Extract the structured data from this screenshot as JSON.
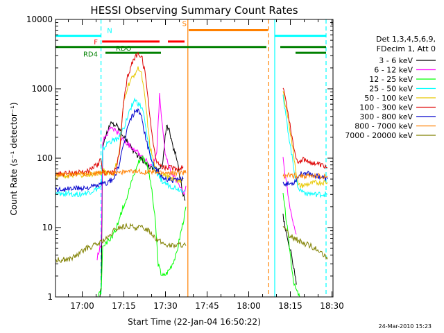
{
  "chart_data": {
    "type": "line",
    "title": "HESSI Observing Summary Count Rates",
    "xlabel": "Start Time (22-Jan-04 16:50:22)",
    "ylabel": "Count Rate (s⁻¹ detector⁻¹)",
    "yscale": "log",
    "xlim": [
      0,
      100
    ],
    "ylim": [
      1,
      10000
    ],
    "x_units": "minutes after 16:50:22",
    "x_ticks": [
      {
        "x": 9.63,
        "label": "17:00"
      },
      {
        "x": 24.63,
        "label": "17:15"
      },
      {
        "x": 39.63,
        "label": "17:30"
      },
      {
        "x": 54.63,
        "label": "17:45"
      },
      {
        "x": 69.63,
        "label": "18:00"
      },
      {
        "x": 84.63,
        "label": "18:15"
      },
      {
        "x": 99.63,
        "label": "18:30"
      }
    ],
    "y_ticks": [
      {
        "y": 1,
        "label": "1"
      },
      {
        "y": 10,
        "label": "10"
      },
      {
        "y": 100,
        "label": "100"
      },
      {
        "y": 1000,
        "label": "1000"
      },
      {
        "y": 10000,
        "label": "10000"
      }
    ],
    "legend_header": [
      "Det 1,3,4,5,6,9,",
      "FDecim 1, Att 0"
    ],
    "legend_position": "right",
    "series": [
      {
        "name": "3 - 6 keV",
        "color": "#000000",
        "points": [
          [
            16.0,
            1
          ],
          [
            16.5,
            1.5
          ],
          [
            17.0,
            150
          ],
          [
            18.5,
            230
          ],
          [
            20.0,
            320
          ],
          [
            22.0,
            300
          ],
          [
            24.0,
            230
          ],
          [
            26.0,
            170
          ],
          [
            28.0,
            130
          ],
          [
            30.0,
            105
          ],
          [
            32.0,
            90
          ],
          [
            34.0,
            75
          ],
          [
            35.5,
            70
          ],
          [
            37.0,
            65
          ],
          [
            38.5,
            80
          ],
          [
            40.0,
            300
          ],
          [
            41.0,
            250
          ],
          [
            42.0,
            160
          ],
          [
            43.5,
            110
          ],
          [
            45.0,
            50
          ],
          [
            46.0,
            30
          ],
          [
            46.8,
            25
          ],
          null,
          [
            82.0,
            15
          ],
          [
            83.0,
            9
          ],
          [
            84.0,
            6
          ],
          [
            85.0,
            4
          ],
          [
            86.0,
            2.5
          ],
          [
            86.8,
            1.5
          ]
        ]
      },
      {
        "name": "6 - 12 keV",
        "color": "#ff00ff",
        "points": [
          [
            15.0,
            3.6
          ],
          [
            16.0,
            5
          ],
          [
            16.5,
            6
          ],
          [
            17.0,
            180
          ],
          [
            18.5,
            220
          ],
          [
            20.0,
            280
          ],
          [
            22.0,
            240
          ],
          [
            24.0,
            190
          ],
          [
            26.0,
            160
          ],
          [
            28.0,
            140
          ],
          [
            30.0,
            120
          ],
          [
            32.0,
            100
          ],
          [
            34.0,
            80
          ],
          [
            35.0,
            75
          ],
          [
            36.5,
            120
          ],
          [
            37.5,
            800
          ],
          [
            38.5,
            300
          ],
          [
            39.5,
            120
          ],
          [
            41.0,
            70
          ],
          [
            42.5,
            55
          ],
          [
            44.0,
            45
          ],
          [
            45.5,
            35
          ],
          [
            46.5,
            30
          ],
          [
            47.0,
            40
          ],
          null,
          [
            82.0,
            100
          ],
          [
            83.0,
            50
          ],
          [
            84.0,
            25
          ],
          [
            85.5,
            12
          ],
          [
            86.8,
            8
          ]
        ]
      },
      {
        "name": "12 - 25 keV",
        "color": "#00ff00",
        "points": [
          [
            15.0,
            1
          ],
          [
            16.5,
            1.2
          ],
          [
            17.0,
            5
          ],
          [
            18.5,
            6
          ],
          [
            20.0,
            7
          ],
          [
            22.0,
            10
          ],
          [
            24.0,
            18
          ],
          [
            26.0,
            30
          ],
          [
            28.0,
            55
          ],
          [
            30.0,
            90
          ],
          [
            31.5,
            105
          ],
          [
            33.0,
            80
          ],
          [
            34.5,
            40
          ],
          [
            36.0,
            12
          ],
          [
            37.0,
            3
          ],
          [
            38.0,
            2.2
          ],
          [
            39.0,
            2
          ],
          [
            40.0,
            2.2
          ],
          [
            41.0,
            2.5
          ],
          [
            42.0,
            3
          ],
          [
            43.5,
            4
          ],
          [
            45.0,
            8
          ],
          [
            46.5,
            15
          ],
          [
            47.0,
            20
          ],
          null,
          [
            82.0,
            30
          ],
          [
            83.5,
            10
          ],
          [
            85.0,
            3
          ],
          [
            86.0,
            1.5
          ],
          [
            87.0,
            1.2
          ],
          [
            88.0,
            1
          ]
        ]
      },
      {
        "name": "25 - 50 keV",
        "color": "#00ffff",
        "points": [
          [
            0,
            30
          ],
          [
            4.0,
            31
          ],
          [
            8.0,
            30
          ],
          [
            12.0,
            32
          ],
          [
            15.0,
            36
          ],
          [
            16.5,
            38
          ],
          [
            17.0,
            130
          ],
          [
            19.0,
            170
          ],
          [
            21.0,
            180
          ],
          [
            23.0,
            200
          ],
          [
            25.0,
            300
          ],
          [
            27.0,
            520
          ],
          [
            28.5,
            700
          ],
          [
            30.0,
            600
          ],
          [
            31.5,
            500
          ],
          [
            33.0,
            200
          ],
          [
            35.0,
            80
          ],
          [
            37.0,
            55
          ],
          [
            39.0,
            45
          ],
          [
            41.0,
            40
          ],
          [
            43.0,
            38
          ],
          [
            45.0,
            35
          ],
          [
            46.5,
            35
          ],
          null,
          [
            82.0,
            800
          ],
          [
            83.5,
            300
          ],
          [
            85.0,
            120
          ],
          [
            86.5,
            50
          ],
          [
            88.0,
            35
          ],
          [
            90.0,
            32
          ],
          [
            93.0,
            30
          ],
          [
            96.0,
            30
          ],
          [
            98.0,
            30
          ]
        ]
      },
      {
        "name": "50 - 100 keV",
        "color": "#e8c800",
        "points": [
          [
            0,
            55
          ],
          [
            4.0,
            56
          ],
          [
            8.0,
            57
          ],
          [
            12.0,
            58
          ],
          [
            15.0,
            60
          ],
          [
            16.5,
            62
          ],
          [
            17.0,
            65
          ],
          [
            19.0,
            62
          ],
          [
            21.0,
            60
          ],
          [
            23.0,
            120
          ],
          [
            24.5,
            600
          ],
          [
            26.0,
            1100
          ],
          [
            27.5,
            1400
          ],
          [
            29.0,
            1800
          ],
          [
            30.0,
            2000
          ],
          [
            31.0,
            1600
          ],
          [
            32.5,
            600
          ],
          [
            34.0,
            150
          ],
          [
            36.0,
            70
          ],
          [
            38.0,
            60
          ],
          [
            40.0,
            55
          ],
          [
            42.0,
            50
          ],
          [
            44.0,
            48
          ],
          [
            46.0,
            48
          ],
          null,
          [
            82.0,
            900
          ],
          [
            84.0,
            350
          ],
          [
            86.0,
            100
          ],
          [
            87.5,
            40
          ],
          [
            89.0,
            40
          ],
          [
            91.0,
            42
          ],
          [
            94.0,
            44
          ],
          [
            98.0,
            45
          ]
        ]
      },
      {
        "name": "100 - 300 keV",
        "color": "#dd0000",
        "points": [
          [
            0,
            60
          ],
          [
            4.0,
            60
          ],
          [
            8.0,
            62
          ],
          [
            12.0,
            65
          ],
          [
            15.0,
            80
          ],
          [
            16.5,
            95
          ],
          [
            17.0,
            62
          ],
          [
            19.0,
            62
          ],
          [
            21.0,
            60
          ],
          [
            23.0,
            110
          ],
          [
            24.5,
            600
          ],
          [
            26.0,
            1500
          ],
          [
            27.5,
            2300
          ],
          [
            29.0,
            3000
          ],
          [
            30.0,
            3200
          ],
          [
            31.0,
            3000
          ],
          [
            32.5,
            1500
          ],
          [
            34.0,
            400
          ],
          [
            36.0,
            100
          ],
          [
            38.0,
            75
          ],
          [
            40.0,
            72
          ],
          [
            42.0,
            72
          ],
          [
            44.0,
            70
          ],
          [
            46.0,
            75
          ],
          null,
          [
            82.0,
            1100
          ],
          [
            84.0,
            400
          ],
          [
            86.0,
            130
          ],
          [
            87.5,
            85
          ],
          [
            89.0,
            95
          ],
          [
            91.0,
            90
          ],
          [
            94.0,
            82
          ],
          [
            98.0,
            72
          ]
        ]
      },
      {
        "name": "300 - 800 keV",
        "color": "#0000cc",
        "points": [
          [
            0,
            35
          ],
          [
            4.0,
            36
          ],
          [
            8.0,
            37
          ],
          [
            12.0,
            38
          ],
          [
            15.0,
            40
          ],
          [
            16.5,
            42
          ],
          [
            17.0,
            42
          ],
          [
            19.0,
            45
          ],
          [
            21.0,
            50
          ],
          [
            23.0,
            80
          ],
          [
            24.5,
            150
          ],
          [
            26.0,
            280
          ],
          [
            27.5,
            400
          ],
          [
            29.0,
            480
          ],
          [
            30.0,
            500
          ],
          [
            31.0,
            380
          ],
          [
            32.5,
            200
          ],
          [
            34.0,
            110
          ],
          [
            36.0,
            70
          ],
          [
            38.0,
            55
          ],
          [
            40.0,
            50
          ],
          [
            42.0,
            48
          ],
          [
            44.0,
            48
          ],
          [
            46.0,
            50
          ],
          null,
          [
            82.0,
            45
          ],
          [
            84.0,
            42
          ],
          [
            86.0,
            45
          ],
          [
            88.0,
            58
          ],
          [
            90.0,
            62
          ],
          [
            93.0,
            58
          ],
          [
            96.0,
            53
          ],
          [
            98.0,
            50
          ]
        ]
      },
      {
        "name": "800 - 7000 keV",
        "color": "#ff8000",
        "points": [
          [
            0,
            58
          ],
          [
            8.0,
            59
          ],
          [
            15.0,
            60
          ],
          [
            17.0,
            61
          ],
          [
            22.0,
            63
          ],
          [
            26.0,
            63
          ],
          [
            30.0,
            64
          ],
          [
            34.0,
            63
          ],
          [
            38.0,
            62
          ],
          [
            42.0,
            61
          ],
          [
            46.0,
            62
          ],
          [
            47.0,
            61
          ],
          null,
          [
            82.0,
            56
          ],
          [
            86.0,
            56
          ],
          [
            92.0,
            55
          ],
          [
            98.0,
            55
          ]
        ]
      },
      {
        "name": "7000 - 20000 keV",
        "color": "#808000",
        "points": [
          [
            0,
            3.4
          ],
          [
            5.0,
            3.5
          ],
          [
            8.0,
            4
          ],
          [
            11.0,
            5
          ],
          [
            14.0,
            5.5
          ],
          [
            16.0,
            6
          ],
          [
            17.0,
            6.5
          ],
          [
            19.0,
            7
          ],
          [
            21.0,
            9
          ],
          [
            23.0,
            10
          ],
          [
            26.0,
            10.5
          ],
          [
            29.0,
            10
          ],
          [
            31.0,
            10
          ],
          [
            33.0,
            9.5
          ],
          [
            35.0,
            8
          ],
          [
            37.0,
            6.5
          ],
          [
            39.0,
            5.8
          ],
          [
            41.0,
            5.5
          ],
          [
            43.0,
            5.5
          ],
          [
            45.0,
            5.7
          ],
          [
            47.0,
            5.5
          ],
          null,
          [
            82.0,
            10
          ],
          [
            84.0,
            8
          ],
          [
            86.0,
            7
          ],
          [
            89.0,
            6
          ],
          [
            92.0,
            5.5
          ],
          [
            95.0,
            4.5
          ],
          [
            98.0,
            3.5
          ]
        ]
      }
    ],
    "vertical_lines": [
      {
        "x": 16.4,
        "color": "#00ffff",
        "style": "dashed"
      },
      {
        "x": 47.7,
        "color": "#ff8000",
        "style": "solid"
      },
      {
        "x": 76.8,
        "color": "#ff8000",
        "style": "dashed"
      },
      {
        "x": 79.0,
        "color": "#00ffff",
        "style": "solid"
      },
      {
        "x": 97.5,
        "color": "#00ffff",
        "style": "dashed"
      }
    ],
    "flag_bars": [
      {
        "label": "N",
        "label_x": 17.8,
        "label_y": 7000,
        "label_side": "right",
        "color": "#00ffff",
        "y": 5800,
        "segments": [
          [
            0,
            16.4
          ],
          [
            79.0,
            97.5
          ]
        ]
      },
      {
        "label": "S",
        "label_x": 48.0,
        "label_y": 8800,
        "label_side": "left",
        "color": "#ff8000",
        "y": 7000,
        "segments": [
          [
            48.0,
            76.5
          ]
        ]
      },
      {
        "label": "F",
        "label_x": 16.0,
        "label_y": 4800,
        "label_side": "left",
        "color": "#ff0000",
        "y": 4800,
        "segments": [
          [
            16.8,
            37.5
          ],
          [
            40.5,
            46.5
          ]
        ]
      },
      {
        "label": "RDO",
        "label_x": 21.0,
        "label_y": 3900,
        "label_side": "right",
        "color": "#008000",
        "y": 4000,
        "segments": [
          [
            0,
            76.0
          ],
          [
            81.0,
            97.5
          ]
        ]
      },
      {
        "label": "RD4",
        "label_x": 16.0,
        "label_y": 3200,
        "label_side": "left",
        "color": "#008000",
        "y": 3300,
        "segments": [
          [
            18.0,
            38.0
          ],
          [
            86.5,
            97.5
          ]
        ]
      }
    ],
    "timestamp": "24-Mar-2010 15:23"
  }
}
